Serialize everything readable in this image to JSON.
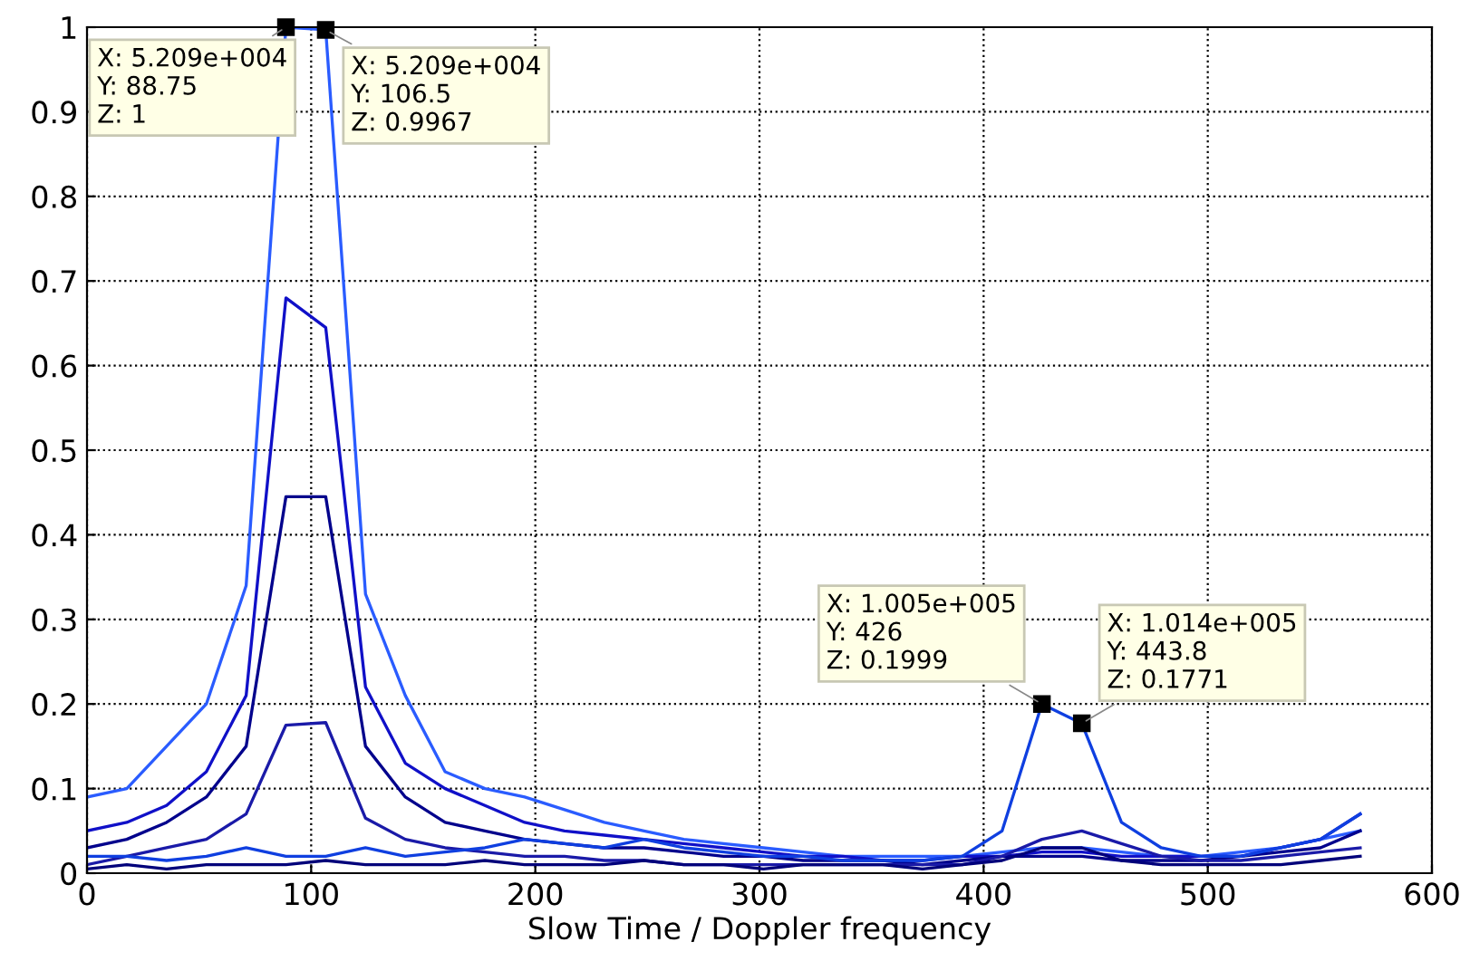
{
  "chart_data": {
    "type": "line",
    "xlabel": "Slow Time / Doppler frequency",
    "x": [
      0,
      17.75,
      35.5,
      53.25,
      71,
      88.75,
      106.5,
      124.25,
      142,
      159.75,
      177.5,
      195.25,
      213,
      230.75,
      248.5,
      266.25,
      284,
      301.75,
      319.5,
      337.25,
      355,
      372.75,
      390.5,
      408.25,
      426,
      443.8,
      461.5,
      479.25,
      497,
      514.75,
      532.5,
      550.25,
      568
    ],
    "series": [
      {
        "color": "#2a5cff",
        "values": [
          0.09,
          0.1,
          0.15,
          0.2,
          0.34,
          1,
          0.997,
          0.33,
          0.21,
          0.12,
          0.1,
          0.09,
          0.075,
          0.06,
          0.05,
          0.04,
          0.035,
          0.03,
          0.025,
          0.02,
          0.02,
          0.02,
          0.02,
          0.025,
          0.03,
          0.03,
          0.025,
          0.02,
          0.02,
          0.025,
          0.03,
          0.04,
          0.05
        ]
      },
      {
        "color": "#1010c8",
        "values": [
          0.05,
          0.06,
          0.08,
          0.12,
          0.21,
          0.68,
          0.645,
          0.22,
          0.13,
          0.1,
          0.08,
          0.06,
          0.05,
          0.045,
          0.04,
          0.035,
          0.03,
          0.025,
          0.02,
          0.02,
          0.015,
          0.015,
          0.02,
          0.02,
          0.025,
          0.025,
          0.02,
          0.02,
          0.02,
          0.02,
          0.03,
          0.04,
          0.07
        ]
      },
      {
        "color": "#00008c",
        "values": [
          0.03,
          0.04,
          0.06,
          0.09,
          0.15,
          0.445,
          0.445,
          0.15,
          0.09,
          0.06,
          0.05,
          0.04,
          0.035,
          0.03,
          0.03,
          0.025,
          0.02,
          0.02,
          0.015,
          0.015,
          0.015,
          0.01,
          0.015,
          0.02,
          0.02,
          0.02,
          0.015,
          0.015,
          0.015,
          0.02,
          0.025,
          0.03,
          0.05
        ]
      },
      {
        "color": "#1a1aa8",
        "values": [
          0.01,
          0.02,
          0.03,
          0.04,
          0.07,
          0.175,
          0.178,
          0.065,
          0.04,
          0.03,
          0.025,
          0.02,
          0.02,
          0.015,
          0.015,
          0.01,
          0.01,
          0.01,
          0.01,
          0.01,
          0.01,
          0.01,
          0.01,
          0.02,
          0.04,
          0.05,
          0.035,
          0.02,
          0.015,
          0.015,
          0.02,
          0.025,
          0.03
        ]
      },
      {
        "color": "#0f3fe0",
        "values": [
          0.02,
          0.02,
          0.015,
          0.02,
          0.03,
          0.02,
          0.02,
          0.03,
          0.02,
          0.025,
          0.03,
          0.04,
          0.035,
          0.03,
          0.04,
          0.03,
          0.025,
          0.02,
          0.02,
          0.015,
          0.015,
          0.015,
          0.02,
          0.05,
          0.2,
          0.177,
          0.06,
          0.03,
          0.02,
          0.02,
          0.03,
          0.04,
          0.07
        ]
      },
      {
        "color": "#00007a",
        "values": [
          0.005,
          0.01,
          0.005,
          0.01,
          0.01,
          0.01,
          0.015,
          0.01,
          0.01,
          0.01,
          0.015,
          0.01,
          0.01,
          0.01,
          0.015,
          0.01,
          0.01,
          0.005,
          0.01,
          0.01,
          0.01,
          0.005,
          0.01,
          0.015,
          0.03,
          0.03,
          0.015,
          0.01,
          0.01,
          0.01,
          0.01,
          0.015,
          0.02
        ]
      }
    ],
    "xlim": [
      0,
      600
    ],
    "xticks": [
      0,
      100,
      200,
      300,
      400,
      500,
      600
    ],
    "ylim": [
      0,
      1
    ],
    "yticks": [
      0,
      0.1,
      0.2,
      0.3,
      0.4,
      0.5,
      0.6,
      0.7,
      0.8,
      0.9,
      1
    ],
    "grid": true,
    "annotations": [
      {
        "text": "X: 5.209e+004\nY: 88.75\nZ: 1",
        "x": 88.75,
        "y": 1
      },
      {
        "text": "X: 5.209e+004\nY: 106.5\nZ: 0.9967",
        "x": 106.5,
        "y": 0.9967
      },
      {
        "text": "X: 1.005e+005\nY: 426\nZ: 0.1999",
        "x": 426,
        "y": 0.1999
      },
      {
        "text": "X: 1.014e+005\nY: 443.8\nZ: 0.1771",
        "x": 443.8,
        "y": 0.1771
      }
    ]
  }
}
